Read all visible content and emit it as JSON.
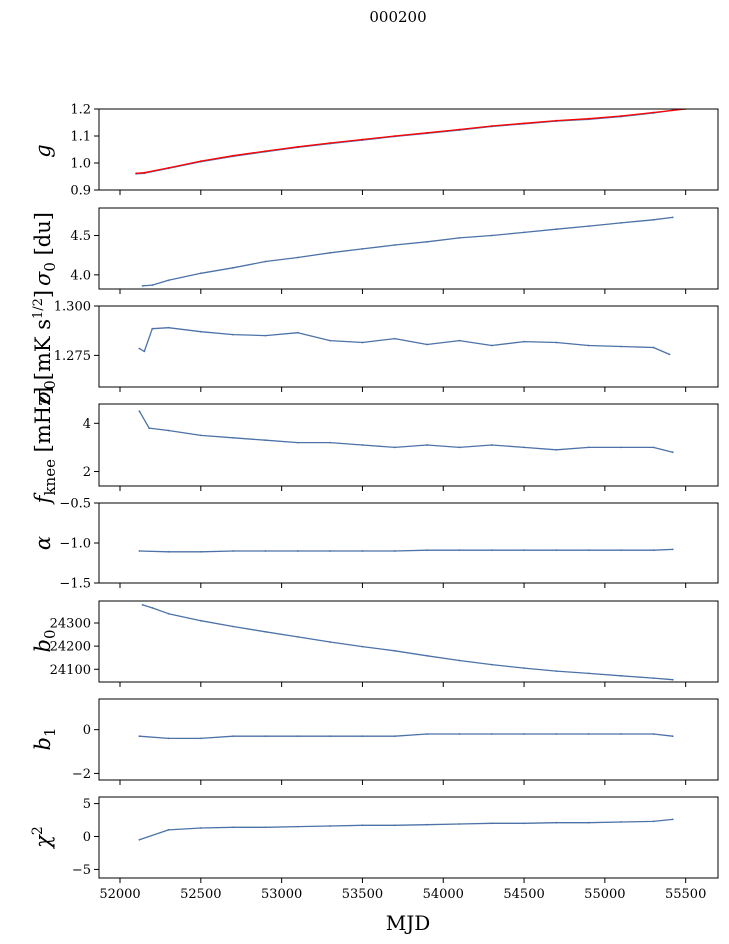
{
  "figure": {
    "title": "000200",
    "xlabel": "MJD"
  },
  "x_axis": {
    "lim": [
      51870,
      55700
    ],
    "ticks": [
      52000,
      52500,
      53000,
      53500,
      54000,
      54500,
      55000,
      55500
    ],
    "tick_labels": [
      "52000",
      "52500",
      "53000",
      "53500",
      "54000",
      "54500",
      "55000",
      "55500"
    ]
  },
  "chart_data": [
    {
      "type": "line",
      "ylabel": "g",
      "ylim": [
        0.9,
        1.2
      ],
      "yticks": [
        0.9,
        1.0,
        1.1,
        1.2
      ],
      "ytick_labels": [
        "0.9",
        "1.0",
        "1.1",
        "1.2"
      ],
      "series": [
        {
          "color": "#4c72a8",
          "x": [
            52100,
            52150,
            52300,
            52500,
            52700,
            52900,
            53100,
            53300,
            53500,
            53700,
            53900,
            54100,
            54300,
            54500,
            54700,
            54900,
            55100,
            55300,
            55420
          ],
          "y": [
            0.96,
            0.962,
            0.98,
            1.005,
            1.025,
            1.042,
            1.058,
            1.072,
            1.085,
            1.098,
            1.11,
            1.122,
            1.135,
            1.145,
            1.155,
            1.162,
            1.172,
            1.185,
            1.195
          ]
        },
        {
          "color": "#ff0000",
          "x": [
            52100,
            52150,
            52300,
            52500,
            52700,
            52900,
            53100,
            53300,
            53500,
            53700,
            53900,
            54100,
            54300,
            54500,
            54700,
            54900,
            55100,
            55300,
            55500
          ],
          "y": [
            0.962,
            0.964,
            0.982,
            1.007,
            1.027,
            1.044,
            1.06,
            1.074,
            1.087,
            1.1,
            1.112,
            1.124,
            1.137,
            1.147,
            1.157,
            1.164,
            1.174,
            1.187,
            1.2
          ]
        }
      ]
    },
    {
      "type": "line",
      "ylabel": "σ0 [du]",
      "ylim": [
        3.82,
        4.85
      ],
      "yticks": [
        4.0,
        4.5
      ],
      "ytick_labels": [
        "4.0",
        "4.5"
      ],
      "series": [
        {
          "color": "#4c72a8",
          "x": [
            52140,
            52200,
            52300,
            52500,
            52700,
            52900,
            53100,
            53300,
            53500,
            53700,
            53900,
            54100,
            54300,
            54500,
            54700,
            54900,
            55100,
            55300,
            55420
          ],
          "y": [
            3.86,
            3.87,
            3.93,
            4.02,
            4.09,
            4.17,
            4.22,
            4.28,
            4.33,
            4.38,
            4.42,
            4.47,
            4.5,
            4.54,
            4.58,
            4.62,
            4.66,
            4.7,
            4.73
          ]
        }
      ]
    },
    {
      "type": "line",
      "ylabel": "σ0[mK s^1/2]",
      "ylim": [
        1.259,
        1.3
      ],
      "yticks": [
        1.275,
        1.3
      ],
      "ytick_labels": [
        "1.275",
        "1.300"
      ],
      "series": [
        {
          "color": "#4c72a8",
          "x": [
            52120,
            52150,
            52200,
            52300,
            52500,
            52700,
            52900,
            53100,
            53300,
            53500,
            53700,
            53900,
            54100,
            54300,
            54500,
            54700,
            54900,
            55100,
            55300,
            55400
          ],
          "y": [
            1.2785,
            1.277,
            1.2885,
            1.289,
            1.287,
            1.2855,
            1.285,
            1.2865,
            1.2825,
            1.2815,
            1.2835,
            1.2805,
            1.2825,
            1.28,
            1.282,
            1.2815,
            1.28,
            1.2795,
            1.279,
            1.2755
          ]
        }
      ]
    },
    {
      "type": "line",
      "ylabel": "f_knee [mHz]",
      "ylim": [
        1.4,
        4.8
      ],
      "yticks": [
        2,
        4
      ],
      "ytick_labels": [
        "2",
        "4"
      ],
      "series": [
        {
          "color": "#4c72a8",
          "x": [
            52120,
            52180,
            52300,
            52500,
            52700,
            52900,
            53100,
            53300,
            53500,
            53700,
            53900,
            54100,
            54300,
            54500,
            54700,
            54900,
            55100,
            55300,
            55420
          ],
          "y": [
            4.5,
            3.8,
            3.7,
            3.5,
            3.4,
            3.3,
            3.2,
            3.2,
            3.1,
            3.0,
            3.1,
            3.0,
            3.1,
            3.0,
            2.9,
            3.0,
            3.0,
            3.0,
            2.8
          ]
        }
      ]
    },
    {
      "type": "line",
      "ylabel": "α",
      "ylim": [
        -1.5,
        -0.5
      ],
      "yticks": [
        -1.5,
        -1.0,
        -0.5
      ],
      "ytick_labels": [
        "−1.5",
        "−1.0",
        "−0.5"
      ],
      "series": [
        {
          "color": "#4c72a8",
          "x": [
            52120,
            52300,
            52500,
            52700,
            52900,
            53100,
            53300,
            53500,
            53700,
            53900,
            54100,
            54300,
            54500,
            54700,
            54900,
            55100,
            55300,
            55420
          ],
          "y": [
            -1.1,
            -1.11,
            -1.11,
            -1.1,
            -1.1,
            -1.1,
            -1.1,
            -1.1,
            -1.1,
            -1.09,
            -1.09,
            -1.09,
            -1.09,
            -1.09,
            -1.09,
            -1.09,
            -1.09,
            -1.08
          ]
        }
      ]
    },
    {
      "type": "line",
      "ylabel": "b0",
      "ylim": [
        24045,
        24395
      ],
      "yticks": [
        24100,
        24200,
        24300
      ],
      "ytick_labels": [
        "24100",
        "24200",
        "24300"
      ],
      "series": [
        {
          "color": "#4c72a8",
          "x": [
            52140,
            52200,
            52300,
            52500,
            52700,
            52900,
            53100,
            53300,
            53500,
            53700,
            53900,
            54100,
            54300,
            54500,
            54700,
            54900,
            55100,
            55300,
            55420
          ],
          "y": [
            24378,
            24365,
            24340,
            24310,
            24285,
            24262,
            24240,
            24218,
            24198,
            24180,
            24158,
            24138,
            24120,
            24105,
            24092,
            24082,
            24072,
            24062,
            24055
          ]
        }
      ]
    },
    {
      "type": "line",
      "ylabel": "b1",
      "ylim": [
        -2.3,
        1.4
      ],
      "yticks": [
        -2,
        0
      ],
      "ytick_labels": [
        "−2",
        "0"
      ],
      "series": [
        {
          "color": "#4c72a8",
          "x": [
            52120,
            52300,
            52500,
            52700,
            52900,
            53100,
            53300,
            53500,
            53700,
            53900,
            54100,
            54300,
            54500,
            54700,
            54900,
            55100,
            55300,
            55420
          ],
          "y": [
            -0.3,
            -0.4,
            -0.4,
            -0.3,
            -0.3,
            -0.3,
            -0.3,
            -0.3,
            -0.3,
            -0.2,
            -0.2,
            -0.2,
            -0.2,
            -0.2,
            -0.2,
            -0.2,
            -0.2,
            -0.3
          ]
        }
      ]
    },
    {
      "type": "line",
      "ylabel": "χ²",
      "ylim": [
        -6.3,
        6.0
      ],
      "yticks": [
        -5,
        0,
        5
      ],
      "ytick_labels": [
        "−5",
        "0",
        "5"
      ],
      "series": [
        {
          "color": "#4c72a8",
          "x": [
            52120,
            52300,
            52500,
            52700,
            52900,
            53100,
            53300,
            53500,
            53700,
            53900,
            54100,
            54300,
            54500,
            54700,
            54900,
            55100,
            55300,
            55420
          ],
          "y": [
            -0.5,
            1.0,
            1.3,
            1.4,
            1.4,
            1.5,
            1.6,
            1.7,
            1.7,
            1.8,
            1.9,
            2.0,
            2.0,
            2.1,
            2.1,
            2.2,
            2.3,
            2.6
          ]
        }
      ]
    }
  ]
}
